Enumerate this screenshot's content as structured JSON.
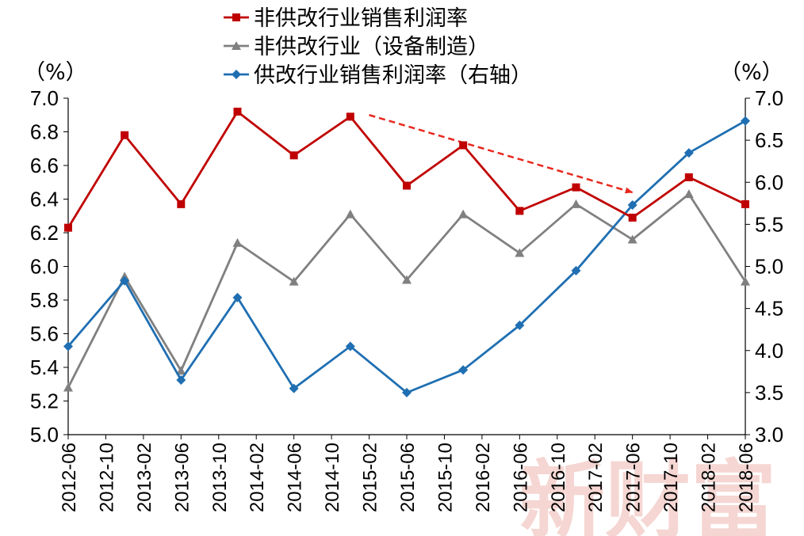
{
  "chart_data": {
    "type": "line",
    "categories": [
      "2012-06",
      "2012-10",
      "2013-02",
      "2013-06",
      "2013-10",
      "2014-02",
      "2014-06",
      "2014-10",
      "2015-02",
      "2015-06",
      "2015-10",
      "2016-02",
      "2016-06",
      "2016-10",
      "2017-02",
      "2017-06",
      "2017-10",
      "2018-02",
      "2018-06"
    ],
    "left_axis": {
      "unit": "（%）",
      "ylim": [
        5.0,
        7.0
      ],
      "ticks": [
        "5.0",
        "5.2",
        "5.4",
        "5.6",
        "5.8",
        "6.0",
        "6.2",
        "6.4",
        "6.6",
        "6.8",
        "7.0"
      ]
    },
    "right_axis": {
      "unit": "（%）",
      "ylim": [
        3.0,
        7.0
      ],
      "ticks": [
        "3.0",
        "3.5",
        "4.0",
        "4.5",
        "5.0",
        "5.5",
        "6.0",
        "6.5",
        "7.0"
      ]
    },
    "series": [
      {
        "name": "非供改行业销售利润率",
        "axis": "left",
        "color": "#c00000",
        "marker": "square",
        "x": [
          "2012-06",
          "2012-12",
          "2013-06",
          "2013-12",
          "2014-06",
          "2014-12",
          "2015-06",
          "2015-12",
          "2016-06",
          "2016-12",
          "2017-06",
          "2017-12",
          "2018-06"
        ],
        "values": [
          6.23,
          6.78,
          6.37,
          6.92,
          6.66,
          6.89,
          6.48,
          6.72,
          6.33,
          6.47,
          6.29,
          6.53,
          6.37
        ]
      },
      {
        "name": "非供改行业（设备制造）",
        "axis": "left",
        "color": "#808080",
        "marker": "triangle",
        "x": [
          "2012-06",
          "2012-12",
          "2013-06",
          "2013-12",
          "2014-06",
          "2014-12",
          "2015-06",
          "2015-12",
          "2016-06",
          "2016-12",
          "2017-06",
          "2017-12",
          "2018-06"
        ],
        "values": [
          5.28,
          5.94,
          5.38,
          6.14,
          5.91,
          6.31,
          5.92,
          6.31,
          6.08,
          6.37,
          6.16,
          6.43,
          5.91
        ]
      },
      {
        "name": "供改行业销售利润率（右轴）",
        "axis": "right",
        "color": "#1f6fb2",
        "marker": "diamond",
        "x": [
          "2012-06",
          "2012-12",
          "2013-06",
          "2013-12",
          "2014-06",
          "2014-12",
          "2015-06",
          "2015-12",
          "2016-06",
          "2016-12",
          "2017-06",
          "2017-12",
          "2018-06"
        ],
        "values": [
          4.05,
          4.83,
          3.65,
          4.63,
          3.55,
          4.05,
          3.5,
          3.77,
          4.3,
          4.95,
          5.73,
          6.35,
          6.73
        ]
      }
    ],
    "annotation": {
      "type": "dashed-arrow",
      "color": "#e8281e",
      "from": {
        "x": "2015-02",
        "y": 6.9
      },
      "to": {
        "x": "2017-06",
        "y": 6.44
      }
    },
    "legend_position": "top-center",
    "grid": false
  },
  "watermark": "新财富"
}
